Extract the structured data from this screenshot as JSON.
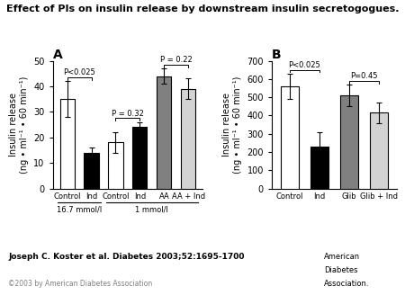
{
  "title": "Effect of PIs on insulin release by downstream insulin secretogogues.",
  "annotations": [
    "Joseph C. Koster et al. Diabetes 2003;52:1695-1700",
    "©2003 by American Diabetes Association",
    "American",
    "Diabetes",
    "Association."
  ],
  "chart_data": [
    {
      "type": "bar",
      "title": "A",
      "ylabel": "Insulin release\n(ng • ml⁻¹ • 60 min⁻¹)",
      "categories": [
        "Control",
        "Ind",
        "Control",
        "Ind",
        "AA",
        "AA + Ind"
      ],
      "values": [
        35,
        14,
        18,
        24,
        44,
        39
      ],
      "errors": [
        7,
        2,
        4,
        2,
        3,
        4
      ],
      "colors": [
        "white",
        "black",
        "white",
        "black",
        "gray",
        "lightgray"
      ],
      "ylim": [
        0,
        50
      ],
      "yticks": [
        0,
        10,
        20,
        30,
        40,
        50
      ],
      "annotations": [
        {
          "text": "P<0.025",
          "between": [
            0,
            1
          ]
        },
        {
          "text": "P = 0.32",
          "between": [
            2,
            3
          ]
        },
        {
          "text": "P = 0.22",
          "between": [
            4,
            5
          ]
        }
      ],
      "groups": [
        {
          "label": "16.7 mmol/l",
          "span": [
            0,
            1
          ]
        },
        {
          "label": "1 mmol/l",
          "span": [
            2,
            5
          ]
        }
      ]
    },
    {
      "type": "bar",
      "title": "B",
      "ylabel": "Insulin release\n(ng • ml⁻¹ • 60 min⁻¹)",
      "categories": [
        "Control",
        "Ind",
        "Glib",
        "Glib + Ind"
      ],
      "values": [
        560,
        230,
        510,
        415
      ],
      "errors": [
        70,
        80,
        60,
        55
      ],
      "colors": [
        "white",
        "black",
        "gray",
        "lightgray"
      ],
      "ylim": [
        0,
        700
      ],
      "yticks": [
        0,
        100,
        200,
        300,
        400,
        500,
        600,
        700
      ],
      "annotations": [
        {
          "text": "P<0.025",
          "between": [
            0,
            1
          ]
        },
        {
          "text": "P=0.45",
          "between": [
            2,
            3
          ]
        }
      ]
    }
  ]
}
